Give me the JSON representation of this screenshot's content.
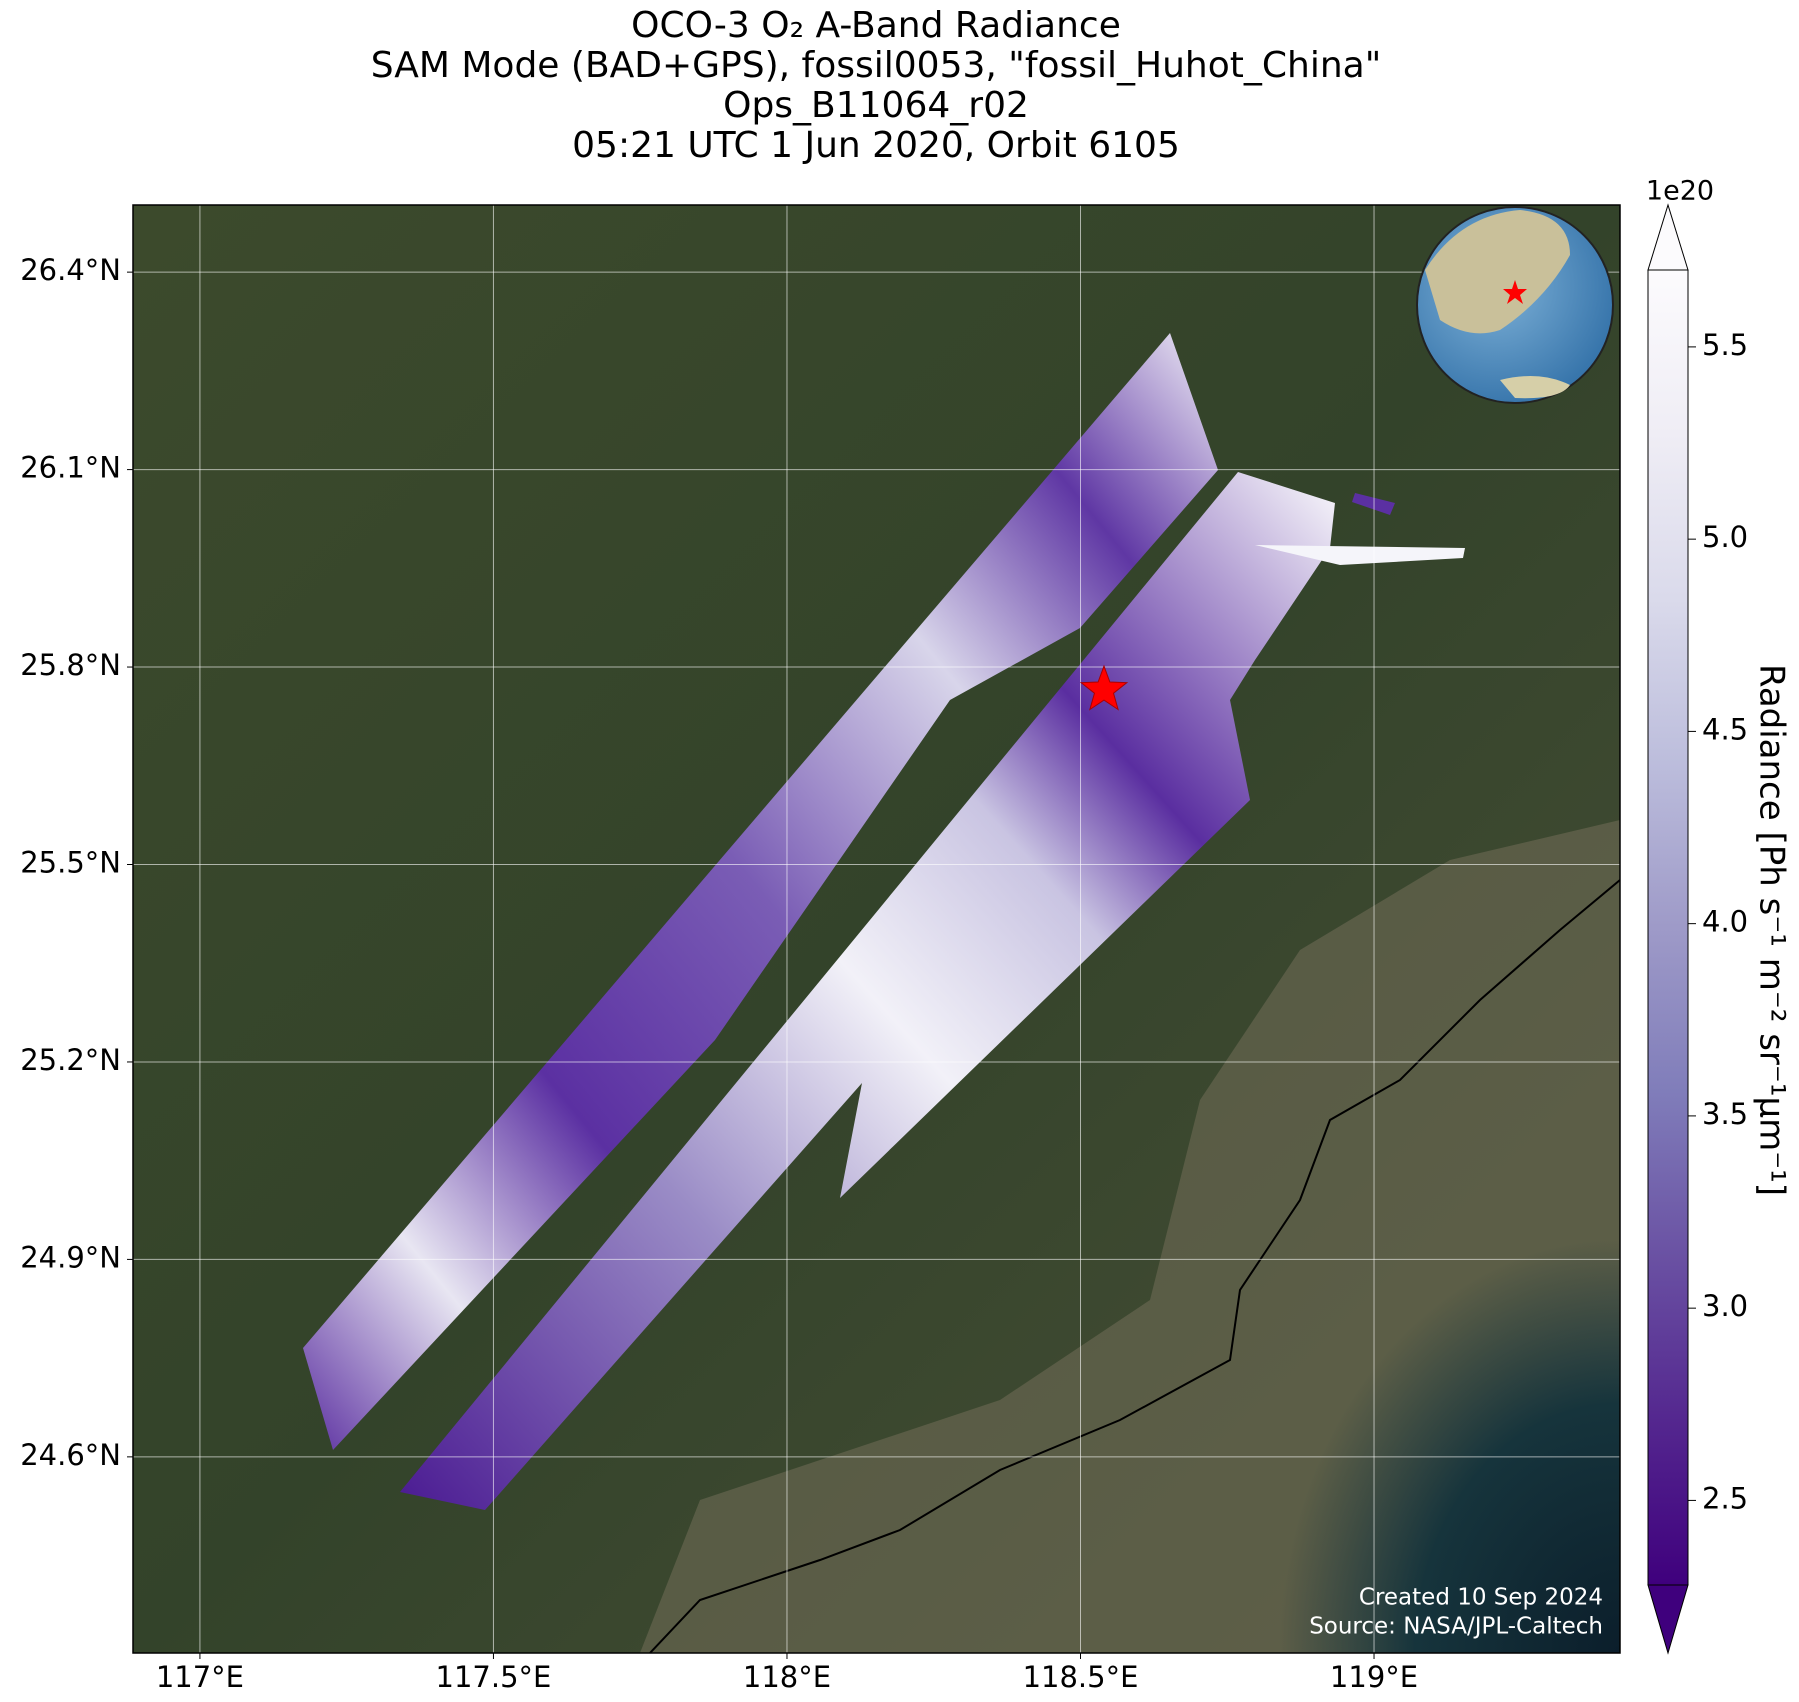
{
  "chart_data": {
    "type": "map",
    "title": [
      "OCO-3 O₂ A-Band Radiance",
      "SAM Mode (BAD+GPS), fossil0053, \"fossil_Huhot_China\"",
      "Ops_B11064_r02",
      "05:21 UTC 1 Jun 2020, Orbit 6105"
    ],
    "xlim": [
      116.886,
      119.419
    ],
    "ylim": [
      24.302,
      26.502
    ],
    "xticks": [
      {
        "value": 117,
        "label": "117°E"
      },
      {
        "value": 117.5,
        "label": "117.5°E"
      },
      {
        "value": 118,
        "label": "118°E"
      },
      {
        "value": 118.5,
        "label": "118.5°E"
      },
      {
        "value": 119,
        "label": "119°E"
      }
    ],
    "yticks": [
      {
        "value": 24.6,
        "label": "24.6°N"
      },
      {
        "value": 24.9,
        "label": "24.9°N"
      },
      {
        "value": 25.2,
        "label": "25.2°N"
      },
      {
        "value": 25.5,
        "label": "25.5°N"
      },
      {
        "value": 25.8,
        "label": "25.8°N"
      },
      {
        "value": 26.1,
        "label": "26.1°N"
      },
      {
        "value": 26.4,
        "label": "26.4°N"
      }
    ],
    "grid": true,
    "target": {
      "lon": 118.54,
      "lat": 25.765,
      "color": "#ff0000"
    },
    "colorbar": {
      "label": "Radiance [Ph s⁻¹ m⁻² sr⁻¹μm⁻¹]",
      "offset": "1e20",
      "lim": [
        2.28,
        5.7
      ],
      "ticks": [
        2.5,
        {
          "value": 3,
          "label": "3.0"
        },
        3.5,
        {
          "value": 4,
          "label": "4.0"
        },
        4.5,
        {
          "value": 5,
          "label": "5.0"
        },
        5.5
      ],
      "colormap": "Purples_r"
    },
    "annotations": [
      "Created 10 Sep 2024",
      "Source: NASA/JPL-Caltech"
    ]
  }
}
